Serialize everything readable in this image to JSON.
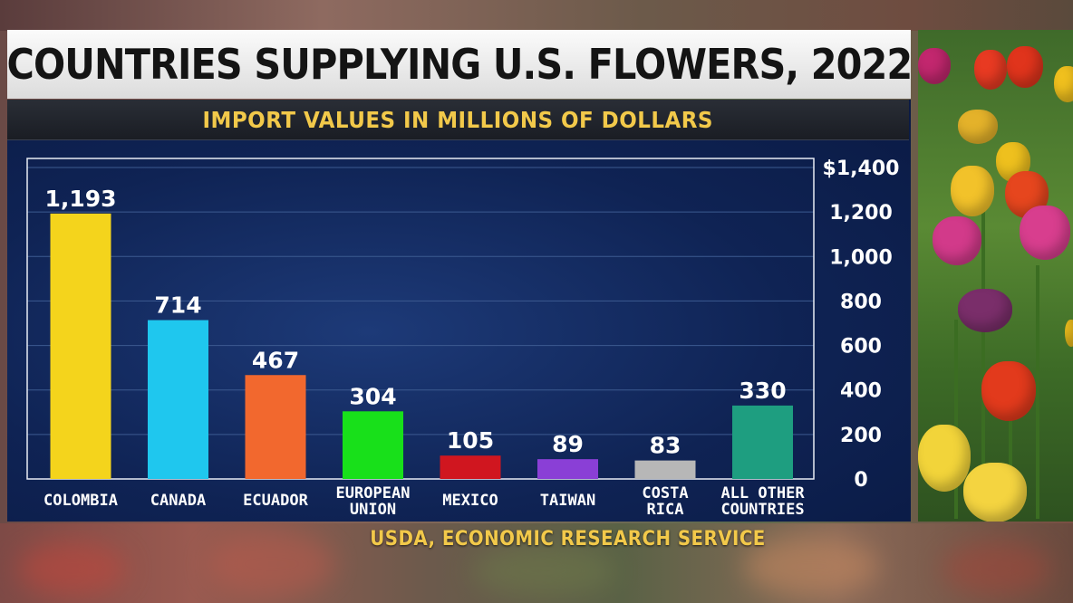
{
  "title": "COUNTRIES SUPPLYING U.S. FLOWERS, 2022",
  "subtitle": "IMPORT VALUES IN MILLIONS OF DOLLARS",
  "source": "USDA, ECONOMIC RESEARCH SERVICE",
  "photo": {
    "subject": "tulip-field"
  },
  "chart_data": {
    "type": "bar",
    "title": "COUNTRIES SUPPLYING U.S. FLOWERS, 2022",
    "subtitle": "IMPORT VALUES IN MILLIONS OF DOLLARS",
    "categories": [
      [
        "COLOMBIA"
      ],
      [
        "CANADA"
      ],
      [
        "ECUADOR"
      ],
      [
        "EUROPEAN",
        "UNION"
      ],
      [
        "MEXICO"
      ],
      [
        "TAIWAN"
      ],
      [
        "COSTA",
        "RICA"
      ],
      [
        "ALL OTHER",
        "COUNTRIES"
      ]
    ],
    "values": [
      1193,
      714,
      467,
      304,
      105,
      89,
      83,
      330
    ],
    "value_labels": [
      "1,193",
      "714",
      "467",
      "304",
      "105",
      "89",
      "83",
      "330"
    ],
    "colors": [
      "#f4d41c",
      "#1fc7ee",
      "#f2682e",
      "#18e01a",
      "#d0161f",
      "#8a3fd6",
      "#b7b7b7",
      "#1e9e80"
    ],
    "ylim": [
      0,
      1400
    ],
    "y_ticks": [
      0,
      200,
      400,
      600,
      800,
      1000,
      1200,
      1400
    ],
    "y_tick_labels": [
      "0",
      "200",
      "400",
      "600",
      "800",
      "1,000",
      "1,200",
      "$1,400"
    ],
    "y_axis_side": "right",
    "grid": true,
    "xlabel": "",
    "ylabel": "",
    "legend": false
  }
}
